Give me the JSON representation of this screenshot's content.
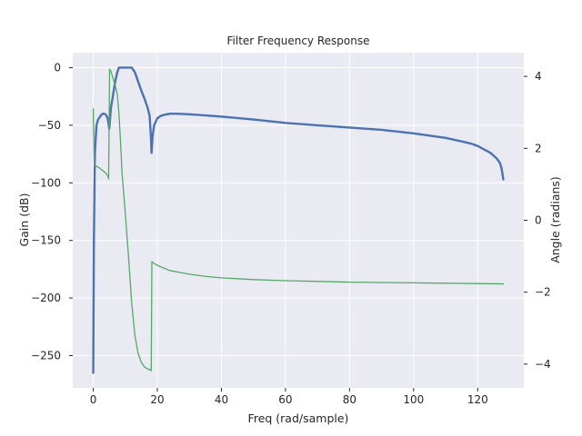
{
  "chart_data": {
    "type": "line",
    "title": "Filter Frequency Response",
    "xlabel": "Freq (rad/sample)",
    "ylabel": "Gain (dB)",
    "y2label": "Angle (radians)",
    "xlim": [
      -6.4,
      134.4
    ],
    "ylim": [
      -278,
      13
    ],
    "y2lim": [
      -4.66,
      4.66
    ],
    "xticks": [
      0,
      20,
      40,
      60,
      80,
      100,
      120
    ],
    "yticks": [
      0,
      -50,
      -100,
      -150,
      -200,
      -250
    ],
    "y2ticks": [
      4,
      2,
      0,
      -2,
      -4
    ],
    "grid": true,
    "background": "#eaeaf2",
    "series": [
      {
        "axis": "left",
        "color": "#4c72b0",
        "x": [
          0,
          0.2,
          0.5,
          1,
          1.5,
          2,
          2.5,
          3,
          3.5,
          4,
          4.5,
          5,
          5.5,
          6,
          6.5,
          7,
          7.5,
          8,
          9,
          10,
          11,
          12,
          13,
          14,
          15,
          16,
          17,
          17.6,
          18,
          18.2,
          18.5,
          19,
          20,
          21,
          22,
          24,
          26,
          30,
          35,
          40,
          50,
          60,
          70,
          80,
          90,
          100,
          105,
          110,
          115,
          118,
          120,
          122,
          124,
          126,
          127,
          127.5,
          128
        ],
        "y": [
          -265,
          -150,
          -75,
          -50,
          -45,
          -43,
          -41,
          -40,
          -40,
          -41,
          -44,
          -53,
          -35,
          -27,
          -18,
          -10,
          -4,
          0,
          0,
          0,
          0,
          0,
          -4,
          -12,
          -20,
          -27,
          -35,
          -42,
          -60,
          -74,
          -60,
          -50,
          -44,
          -42,
          -41,
          -40,
          -40,
          -40.5,
          -41.5,
          -42.5,
          -45,
          -48,
          -50,
          -52,
          -54,
          -57,
          -59,
          -61,
          -64,
          -66,
          -68,
          -71,
          -74,
          -79,
          -83,
          -88,
          -97
        ]
      },
      {
        "axis": "right",
        "color": "#55a868",
        "x": [
          0,
          0.15,
          0.3,
          1,
          2,
          3,
          4,
          4.6,
          4.8,
          5.1,
          5.5,
          6,
          6.5,
          7,
          7.5,
          8,
          8.5,
          9,
          10,
          11,
          12,
          13,
          14,
          15,
          16,
          17,
          18.1,
          18.3,
          19,
          20,
          22,
          24,
          27,
          30,
          35,
          40,
          50,
          60,
          70,
          80,
          90,
          100,
          110,
          120,
          128
        ],
        "y": [
          3.1,
          2.3,
          1.55,
          1.5,
          1.45,
          1.38,
          1.3,
          1.22,
          1.15,
          4.2,
          4.15,
          4.0,
          3.85,
          3.7,
          3.5,
          3.0,
          2.2,
          1.3,
          0.2,
          -1.0,
          -2.3,
          -3.2,
          -3.7,
          -3.95,
          -4.08,
          -4.13,
          -4.18,
          -1.15,
          -1.2,
          -1.25,
          -1.33,
          -1.4,
          -1.45,
          -1.5,
          -1.56,
          -1.6,
          -1.65,
          -1.68,
          -1.7,
          -1.72,
          -1.73,
          -1.74,
          -1.75,
          -1.76,
          -1.77
        ]
      }
    ]
  }
}
